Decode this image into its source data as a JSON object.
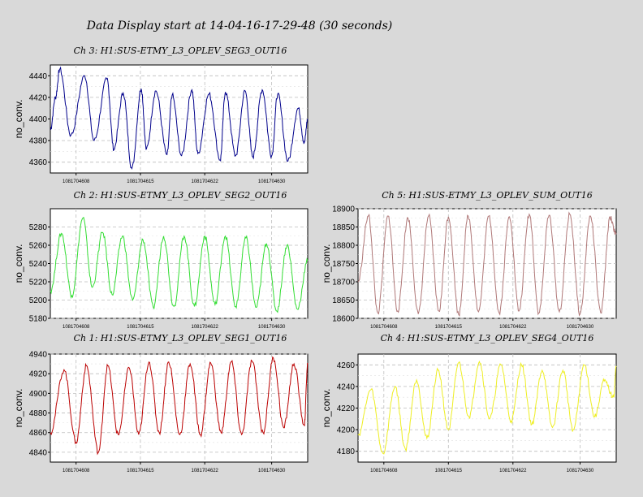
{
  "title": "Data Display start at 14-04-16-17-29-48 (30 seconds)",
  "chart_data": [
    {
      "type": "line",
      "title": "Ch 3: H1:SUS-ETMY_L3_OPLEV_SEG3_OUT16",
      "ylabel": "no_conv.",
      "ylim": [
        4350,
        4450
      ],
      "yticks": [
        4360,
        4380,
        4400,
        4420,
        4440
      ],
      "xticks": [
        "1081704608",
        "1081704615",
        "1081704622",
        "1081704630"
      ],
      "color": "#00008b",
      "series": [
        {
          "x": [
            0.0,
            0.6,
            1.1,
            2.4,
            4.0,
            5.1,
            6.6,
            7.4,
            8.5,
            9.5,
            10.6,
            11.2,
            12.3,
            13.6,
            14.2,
            15.3,
            16.5,
            17.2,
            18.5,
            19.8,
            20.4,
            21.6,
            22.7,
            23.6,
            24.7,
            25.8,
            26.5,
            27.7,
            28.9,
            29.6,
            30.0
          ],
          "values": [
            4390,
            4420,
            4446,
            4385,
            4440,
            4380,
            4437,
            4372,
            4424,
            4354,
            4428,
            4372,
            4426,
            4367,
            4422,
            4366,
            4427,
            4368,
            4423,
            4362,
            4425,
            4366,
            4426,
            4365,
            4427,
            4366,
            4423,
            4361,
            4410,
            4378,
            4400
          ]
        }
      ]
    },
    {
      "type": "line",
      "title": "Ch 2: H1:SUS-ETMY_L3_OPLEV_SEG2_OUT16",
      "ylabel": "no_conv.",
      "ylim": [
        5180,
        5300
      ],
      "yticks": [
        5180,
        5200,
        5220,
        5240,
        5260,
        5280
      ],
      "xticks": [
        "1081704608",
        "1081704615",
        "1081704622",
        "1081704630"
      ],
      "color": "#33dd33",
      "series": [
        {
          "x": [
            0.0,
            1.3,
            2.5,
            3.8,
            4.9,
            6.1,
            7.2,
            8.4,
            9.6,
            10.8,
            12.0,
            13.2,
            14.4,
            15.6,
            16.8,
            18.0,
            19.2,
            20.4,
            21.6,
            22.8,
            24.0,
            25.2,
            26.4,
            27.6,
            28.8,
            30.0
          ],
          "values": [
            5210,
            5273,
            5205,
            5290,
            5214,
            5274,
            5206,
            5270,
            5200,
            5266,
            5192,
            5270,
            5193,
            5270,
            5193,
            5270,
            5195,
            5270,
            5193,
            5268,
            5192,
            5262,
            5188,
            5260,
            5190,
            5243
          ]
        }
      ]
    },
    {
      "type": "line",
      "title": "Ch 5: H1:SUS-ETMY_L3_OPLEV_SUM_OUT16",
      "ylabel": "no_conv.",
      "ylim": [
        18600,
        18900
      ],
      "yticks": [
        18600,
        18650,
        18700,
        18750,
        18800,
        18850,
        18900
      ],
      "xticks": [
        "1081704608",
        "1081704615",
        "1081704622",
        "1081704630"
      ],
      "color": "#b07878",
      "series": [
        {
          "x": [
            0.0,
            1.2,
            2.3,
            3.5,
            4.6,
            5.8,
            7.0,
            8.2,
            9.4,
            10.5,
            11.7,
            12.8,
            14.0,
            15.2,
            16.4,
            17.6,
            18.7,
            19.9,
            21.0,
            22.2,
            23.4,
            24.6,
            25.8,
            27.0,
            28.2,
            29.3,
            30.0
          ],
          "values": [
            18700,
            18880,
            18615,
            18880,
            18620,
            18875,
            18612,
            18880,
            18620,
            18878,
            18610,
            18880,
            18618,
            18880,
            18615,
            18878,
            18620,
            18885,
            18615,
            18882,
            18618,
            18885,
            18612,
            18880,
            18615,
            18875,
            18830
          ]
        }
      ]
    },
    {
      "type": "line",
      "title": "Ch 1: H1:SUS-ETMY_L3_OPLEV_SEG1_OUT16",
      "ylabel": "no_conv.",
      "ylim": [
        4830,
        4940
      ],
      "yticks": [
        4840,
        4860,
        4880,
        4900,
        4920,
        4940
      ],
      "xticks": [
        "1081704608",
        "1081704615",
        "1081704622",
        "1081704630"
      ],
      "color": "#bb0000",
      "series": [
        {
          "x": [
            0.0,
            1.6,
            3.0,
            4.2,
            5.6,
            6.7,
            7.9,
            9.2,
            10.3,
            11.5,
            12.7,
            13.8,
            15.1,
            16.3,
            17.5,
            18.7,
            19.9,
            21.1,
            22.3,
            23.5,
            24.8,
            26.0,
            27.2,
            28.4,
            29.6,
            30.0
          ],
          "values": [
            4860,
            4924,
            4850,
            4928,
            4840,
            4928,
            4858,
            4926,
            4858,
            4932,
            4860,
            4932,
            4858,
            4930,
            4858,
            4931,
            4860,
            4932,
            4858,
            4933,
            4860,
            4936,
            4865,
            4930,
            4868,
            4930
          ]
        }
      ]
    },
    {
      "type": "line",
      "title": "Ch 4: H1:SUS-ETMY_L3_OPLEV_SEG4_OUT16",
      "ylabel": "no_conv.",
      "ylim": [
        4170,
        4270
      ],
      "yticks": [
        4180,
        4200,
        4220,
        4240,
        4260
      ],
      "xticks": [
        "1081704608",
        "1081704615",
        "1081704622",
        "1081704630"
      ],
      "color": "#eeee22",
      "series": [
        {
          "x": [
            0.0,
            1.5,
            2.9,
            4.3,
            5.5,
            6.8,
            8.0,
            9.3,
            10.5,
            11.7,
            12.9,
            14.1,
            15.3,
            16.6,
            17.8,
            19.0,
            20.2,
            21.4,
            22.6,
            23.8,
            25.0,
            26.3,
            27.5,
            28.6,
            29.7,
            30.0
          ],
          "values": [
            4195,
            4237,
            4178,
            4240,
            4182,
            4246,
            4192,
            4255,
            4200,
            4262,
            4212,
            4263,
            4210,
            4260,
            4208,
            4260,
            4205,
            4255,
            4202,
            4255,
            4200,
            4260,
            4212,
            4245,
            4230,
            4258
          ]
        }
      ]
    }
  ]
}
